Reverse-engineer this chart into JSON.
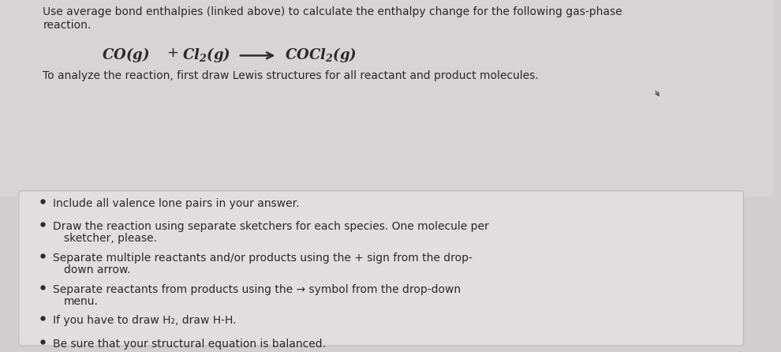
{
  "bg_color": "#d0cece",
  "top_area_color": "#d6d4d4",
  "panel_color": "#e0dede",
  "panel_border": "#c0bebe",
  "text_color": "#2a2a2a",
  "header_line1": "Use average bond enthalpies (linked above) to calculate the enthalpy change for the following gas-phase",
  "header_line2": "reaction.",
  "subheader": "To analyze the reaction, first draw Lewis structures for all reactant and product molecules.",
  "bullets": [
    [
      "Include all valence lone pairs in your answer.",
      ""
    ],
    [
      "Draw the reaction using separate sketchers for each species. One molecule per",
      "sketcher, please."
    ],
    [
      "Separate multiple reactants and/or products using the + sign from the drop-",
      "down arrow."
    ],
    [
      "Separate reactants from products using the → symbol from the drop-down",
      "menu."
    ],
    [
      "If you have to draw H₂, draw H-H.",
      ""
    ],
    [
      "Be sure that your structural equation is balanced.",
      ""
    ]
  ],
  "reaction_fontsize": 13,
  "header_fontsize": 10,
  "bullet_fontsize": 10,
  "subheader_fontsize": 10
}
